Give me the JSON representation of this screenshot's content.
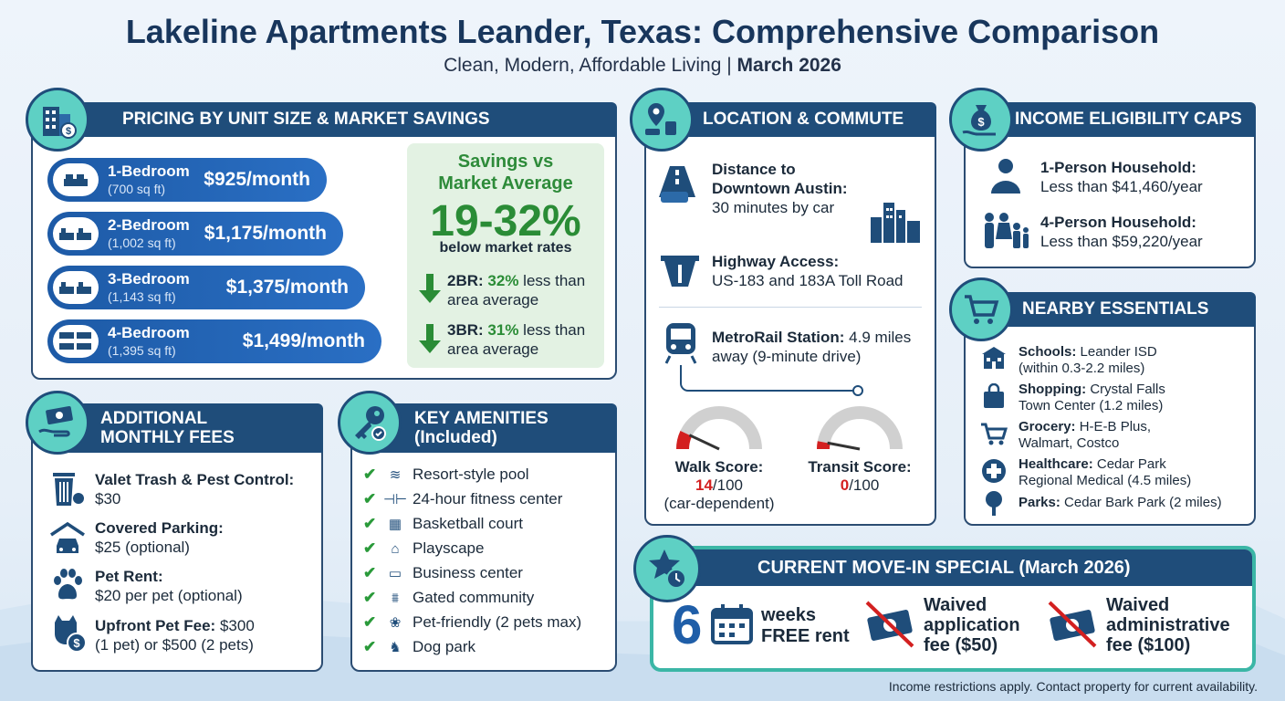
{
  "title": "Lakeline Apartments Leander, Texas: Comprehensive Comparison",
  "subtitle_main": "Clean, Modern, Affordable Living | ",
  "subtitle_date": "March 2026",
  "pricing": {
    "header": "PRICING BY UNIT SIZE & MARKET SAVINGS",
    "units": [
      {
        "name": "1-Bedroom",
        "size": "(700 sq ft)",
        "price": "$925/month"
      },
      {
        "name": "2-Bedroom",
        "size": "(1,002 sq ft)",
        "price": "$1,175/month"
      },
      {
        "name": "3-Bedroom",
        "size": "(1,143 sq ft)",
        "price": "$1,375/month"
      },
      {
        "name": "4-Bedroom",
        "size": "(1,395 sq ft)",
        "price": "$1,499/month"
      }
    ],
    "savings": {
      "heading_1": "Savings vs",
      "heading_2": "Market Average",
      "range": "19-32%",
      "below": "below market rates",
      "rows": [
        {
          "unit": "2BR:",
          "pct": "32%",
          "l1": " less than",
          "l2": "area average"
        },
        {
          "unit": "3BR:",
          "pct": "31%",
          "l1": " less than",
          "l2": "area average"
        }
      ]
    }
  },
  "location": {
    "header": "LOCATION & COMMUTE",
    "distance_label_1": "Distance to",
    "distance_label_2": "Downtown Austin:",
    "distance_value": "30 minutes by car",
    "highway_label": "Highway Access:",
    "highway_value": "US-183 and 183A Toll Road",
    "metro_label": "MetroRail Station:",
    "metro_value_1": " 4.9 miles",
    "metro_value_2": "away (9-minute drive)",
    "walk": {
      "label": "Walk Score:",
      "score": "14",
      "of": "/100",
      "note": "(car-dependent)",
      "value": 14
    },
    "transit": {
      "label": "Transit Score:",
      "score": "0",
      "of": "/100",
      "value": 0
    }
  },
  "income": {
    "header": "INCOME ELIGIBILITY CAPS",
    "rows": [
      {
        "label": "1-Person Household:",
        "value": "Less than $41,460/year"
      },
      {
        "label": "4-Person Household:",
        "value": "Less than $59,220/year"
      }
    ]
  },
  "essentials": {
    "header": "NEARBY ESSENTIALS",
    "items": [
      {
        "label": "Schools:",
        "v1": " Leander ISD",
        "v2": "(within 0.3-2.2 miles)"
      },
      {
        "label": "Shopping:",
        "v1": " Crystal Falls",
        "v2": "Town Center (1.2 miles)"
      },
      {
        "label": "Grocery:",
        "v1": " H-E-B Plus,",
        "v2": "Walmart, Costco"
      },
      {
        "label": "Healthcare:",
        "v1": " Cedar Park",
        "v2": "Regional Medical (4.5 miles)"
      },
      {
        "label": "Parks:",
        "v1": " Cedar Bark Park (2 miles)",
        "v2": ""
      }
    ]
  },
  "fees": {
    "header_1": "ADDITIONAL",
    "header_2": "MONTHLY FEES",
    "items": [
      {
        "label": "Valet Trash & Pest Control:",
        "v1": "",
        "v2": "$30"
      },
      {
        "label": "Covered Parking:",
        "v1": "",
        "v2": "$25 (optional)"
      },
      {
        "label": "Pet Rent:",
        "v1": "",
        "v2": "$20 per pet (optional)"
      },
      {
        "label": "Upfront Pet Fee:",
        "v1": " $300",
        "v2": "(1 pet) or $500 (2 pets)"
      }
    ]
  },
  "amenities": {
    "header_1": "KEY AMENITIES",
    "header_2": "(Included)",
    "items": [
      "Resort-style pool",
      "24-hour fitness center",
      "Basketball court",
      "Playscape",
      "Business center",
      "Gated community",
      "Pet-friendly (2 pets max)",
      "Dog park"
    ]
  },
  "special": {
    "header": "CURRENT MOVE-IN SPECIAL (March 2026)",
    "weeks_num": "6",
    "weeks_l1": "weeks",
    "weeks_l2": "FREE rent",
    "app_l1": "Waived",
    "app_l2": "application",
    "app_l3": "fee ($50)",
    "adm_l1": "Waived",
    "adm_l2": "administrative",
    "adm_l3": "fee ($100)"
  },
  "footer": "Income restrictions apply. Contact property for current availability.",
  "colors": {
    "navy": "#1f4d7a",
    "teal": "#5ed0c4",
    "green": "#2a8c36",
    "red": "#d32020"
  }
}
